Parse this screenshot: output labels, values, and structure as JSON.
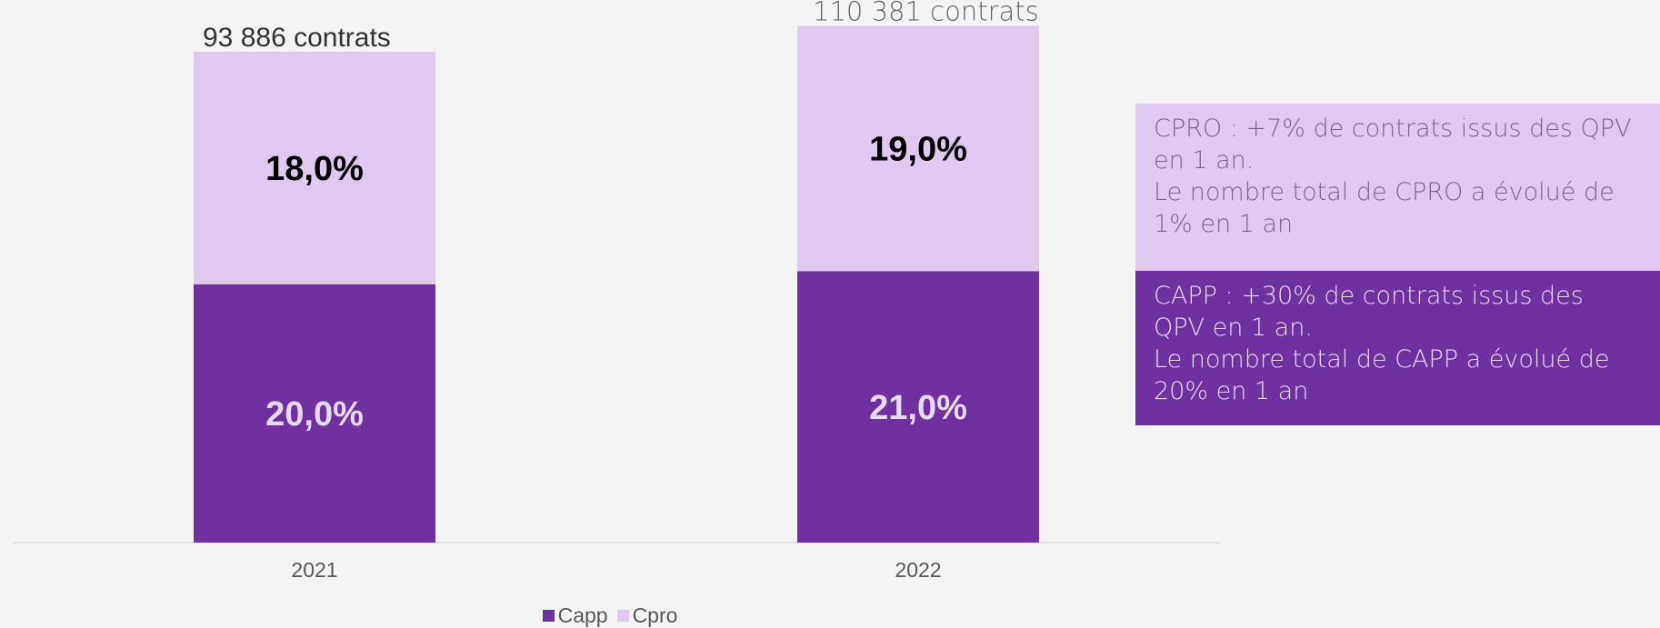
{
  "chart_data": {
    "type": "bar",
    "stacked": true,
    "categories": [
      "2021",
      "2022"
    ],
    "series": [
      {
        "name": "Capp",
        "values": [
          20.0,
          21.0
        ],
        "labels": [
          "20,0%",
          "21,0%"
        ],
        "color": "#7030a0",
        "label_color": "#e6d9f2"
      },
      {
        "name": "Cpro",
        "values": [
          18.0,
          19.0
        ],
        "labels": [
          "18,0%",
          "19,0%"
        ],
        "color": "#dfc9ef",
        "label_color": "#000000"
      }
    ],
    "totals": [
      "93 886 contrats",
      "110 381 contrats"
    ],
    "title": "",
    "xlabel": "",
    "ylabel": "",
    "ylim": [
      0,
      42
    ],
    "grid": false,
    "legend": "bottom"
  },
  "notes": {
    "cpro": [
      "CPRO : +7% de contrats issus des QPV en 1 an.",
      "Le nombre total de CPRO a évolué de 1% en 1 an"
    ],
    "capp": [
      "CAPP : +30% de contrats issus des QPV en 1 an.",
      "Le nombre total de CAPP a évolué de 20% en 1 an"
    ]
  },
  "colors": {
    "capp": "#7030a0",
    "cpro": "#dfc9ef",
    "background": "#f4f4f4"
  }
}
